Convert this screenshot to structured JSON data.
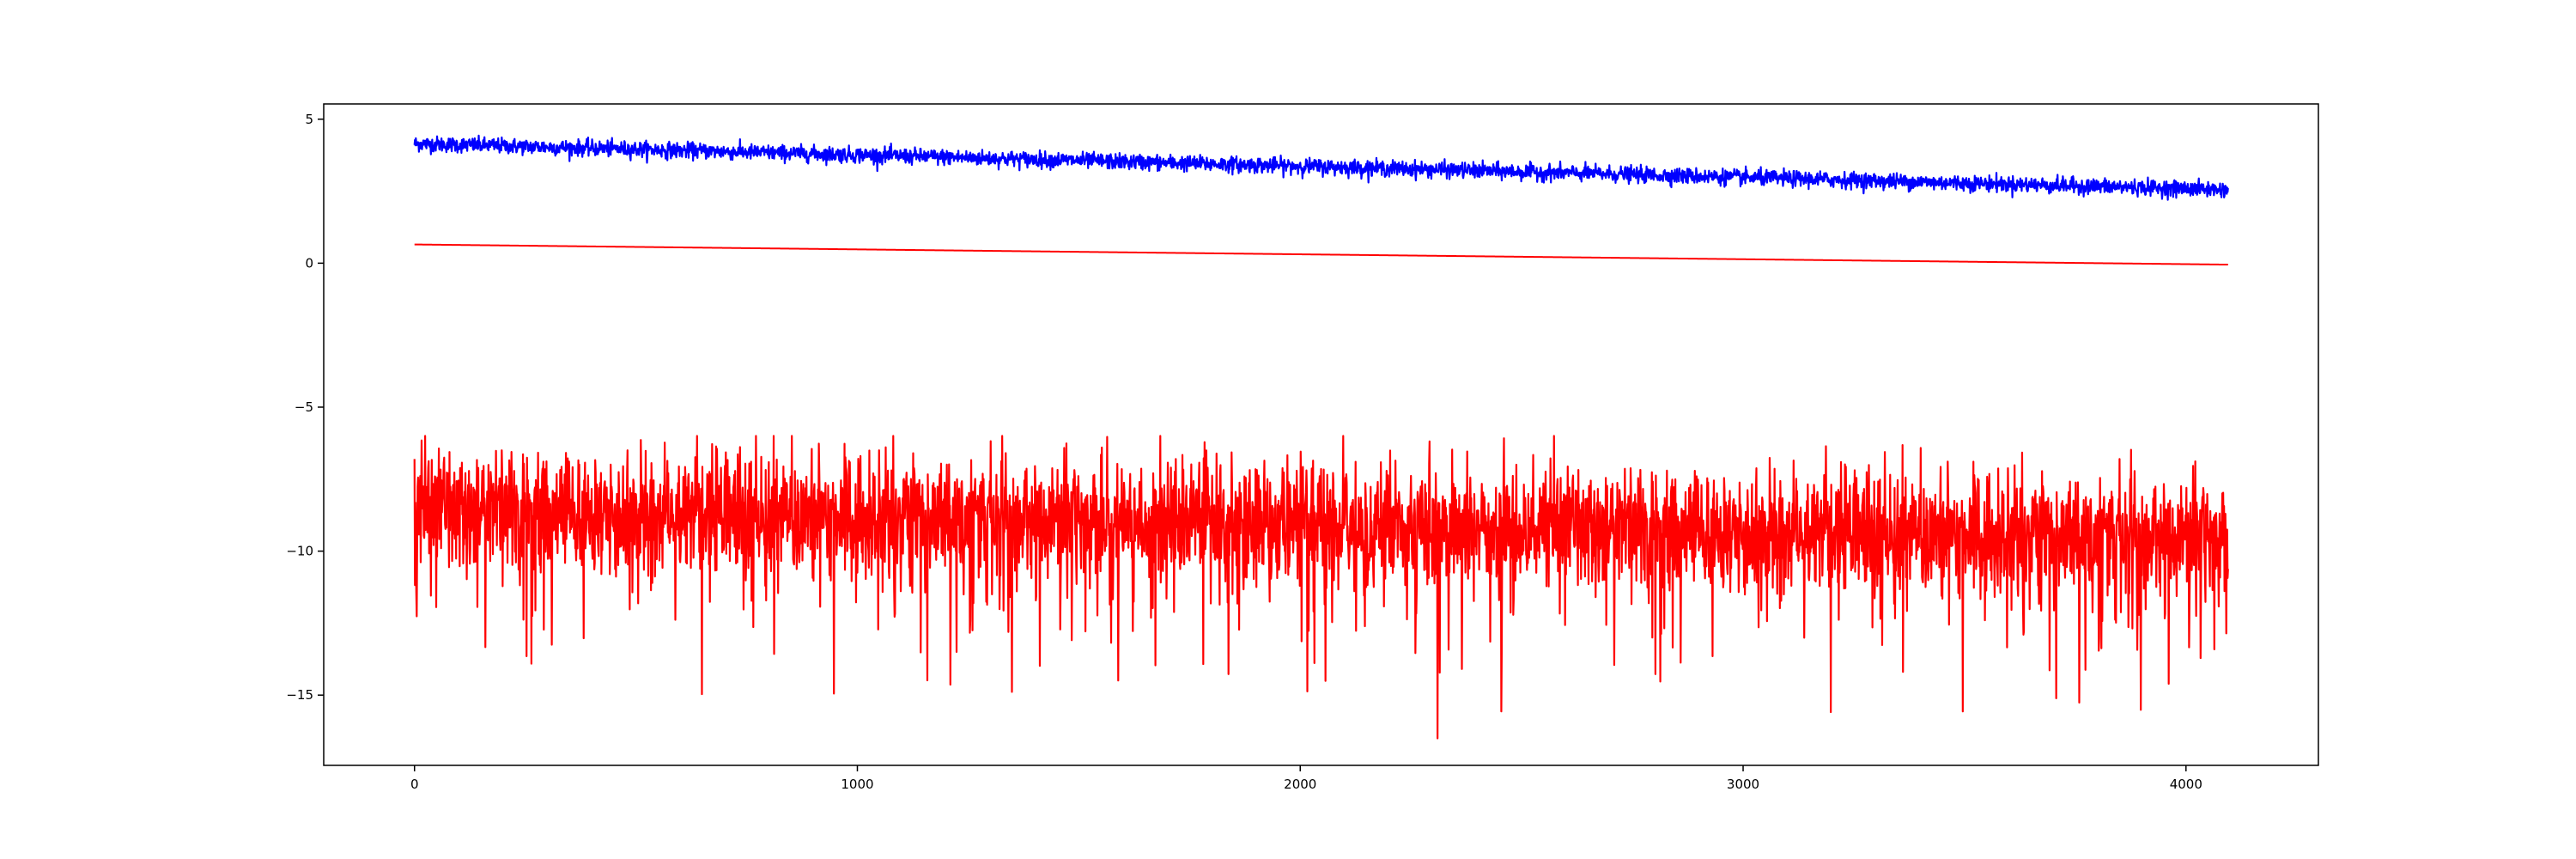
{
  "chart_data": {
    "type": "line",
    "title": "",
    "xlabel": "",
    "ylabel": "",
    "xlim": [
      -205,
      4299
    ],
    "ylim": [
      -17.44,
      5.53
    ],
    "grid": false,
    "x_ticks": [
      {
        "value": 0,
        "label": "0"
      },
      {
        "value": 1000,
        "label": "1000"
      },
      {
        "value": 2000,
        "label": "2000"
      },
      {
        "value": 3000,
        "label": "3000"
      },
      {
        "value": 4000,
        "label": "4000"
      }
    ],
    "y_ticks": [
      {
        "value": 5,
        "label": "5"
      },
      {
        "value": 0,
        "label": "0"
      },
      {
        "value": -5,
        "label": "−5"
      },
      {
        "value": -10,
        "label": "−10"
      },
      {
        "value": -15,
        "label": "−15"
      }
    ],
    "series": [
      {
        "color": "#0000ff",
        "x_range": [
          0,
          4095
        ],
        "samples": 4096,
        "mean_start": 4.15,
        "mean_end": 2.55,
        "noise_amplitude": 0.3,
        "y_min": 2.2,
        "y_max": 4.55
      },
      {
        "color": "#ff0000",
        "x_range": [
          0,
          4095
        ],
        "samples": 4096,
        "y_start": 0.65,
        "y_end": -0.05
      },
      {
        "color": "#ff0000",
        "x_range": [
          0,
          4095
        ],
        "samples": 4096,
        "mean_start": -8.6,
        "mean_end": -9.6,
        "noise_amplitude": 1.4,
        "y_min": -16.5,
        "y_max": -6.0
      }
    ]
  }
}
